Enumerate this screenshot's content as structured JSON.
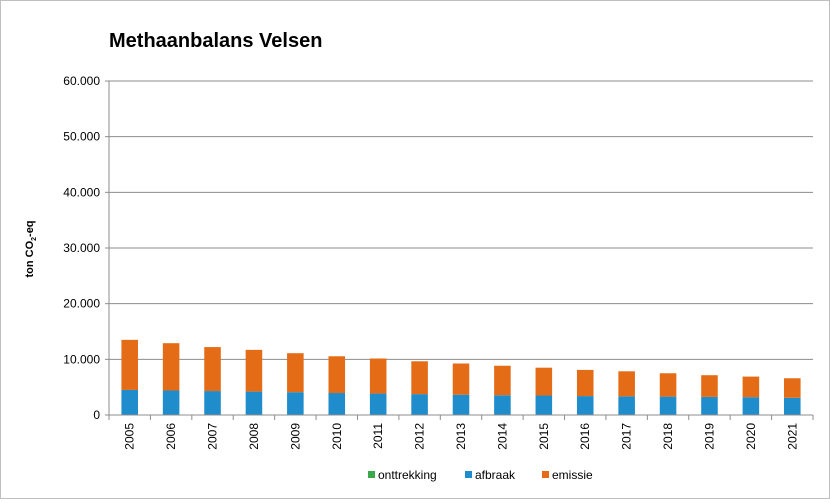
{
  "chart_data": {
    "type": "bar",
    "stacked": true,
    "title": "Methaanbalans Velsen",
    "xlabel": "",
    "ylabel": "ton CO2-eq",
    "ylabel_parts": {
      "main": "ton CO",
      "sub": "2",
      "tail": "-eq"
    },
    "ylim": [
      0,
      60000
    ],
    "yticks": [
      0,
      10000,
      20000,
      30000,
      40000,
      50000,
      60000
    ],
    "ytick_labels": [
      "0",
      "10.000",
      "20.000",
      "30.000",
      "40.000",
      "50.000",
      "60.000"
    ],
    "grid": true,
    "legend_position": "bottom",
    "categories": [
      "2005",
      "2006",
      "2007",
      "2008",
      "2009",
      "2010",
      "2011",
      "2012",
      "2013",
      "2014",
      "2015",
      "2016",
      "2017",
      "2018",
      "2019",
      "2020",
      "2021"
    ],
    "series": [
      {
        "name": "onttrekking",
        "color": "#3aa84a",
        "values": [
          0,
          0,
          0,
          0,
          0,
          0,
          0,
          0,
          0,
          0,
          0,
          0,
          0,
          0,
          0,
          0,
          0
        ]
      },
      {
        "name": "afbraak",
        "color": "#1f8dcc",
        "values": [
          4500,
          4400,
          4300,
          4200,
          4100,
          3950,
          3850,
          3750,
          3650,
          3550,
          3500,
          3400,
          3350,
          3300,
          3250,
          3200,
          3100
        ]
      },
      {
        "name": "emissie",
        "color": "#e56c16",
        "values": [
          9000,
          8500,
          7900,
          7500,
          7000,
          6600,
          6300,
          5900,
          5600,
          5300,
          5000,
          4700,
          4500,
          4200,
          3900,
          3700,
          3500
        ]
      }
    ]
  }
}
